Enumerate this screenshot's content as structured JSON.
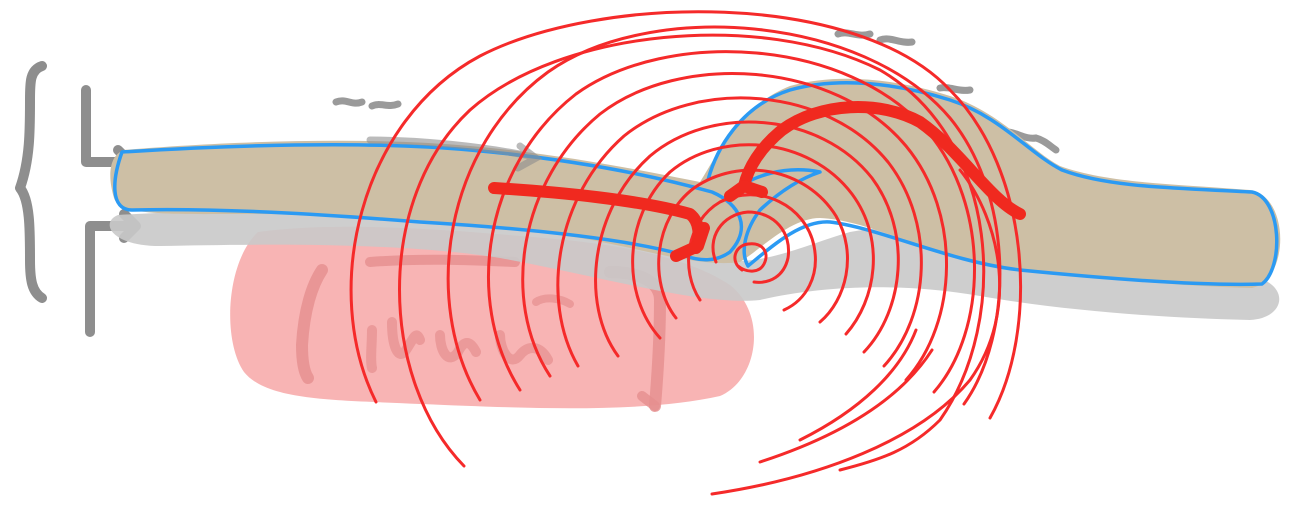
{
  "sketch": {
    "colors": {
      "background": "#ffffff",
      "layer_fill": "#cdbfa5",
      "layer_shadow": "#c9c9c9",
      "layer_outline": "#2b9af3",
      "block_fill": "#f7a7a7",
      "block_strokes": "#e58e8e",
      "bracket_gray": "#8e8e8e",
      "ripple_red": "#f52a2a",
      "arrow_red": "#f0291f"
    },
    "icons": {
      "left_brace": "curly-brace-icon",
      "arrows": "curved-arrow-icon"
    }
  }
}
